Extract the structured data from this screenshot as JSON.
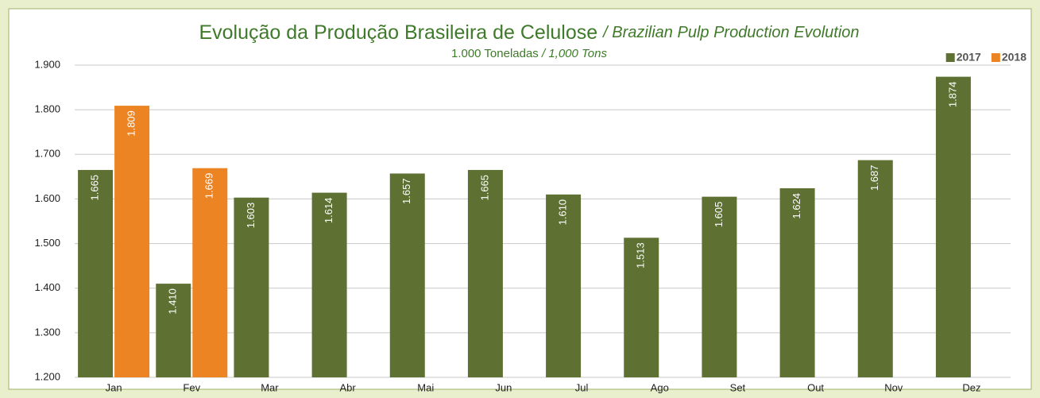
{
  "chart_data": {
    "type": "bar",
    "title": "Evolução da Produção Brasileira de Celulose",
    "title_translation": "/ Brazilian Pulp Production Evolution",
    "subtitle": "1.000 Toneladas",
    "subtitle_translation": "/ 1,000 Tons",
    "categories": [
      "Jan",
      "Fev",
      "Mar",
      "Abr",
      "Mai",
      "Jun",
      "Jul",
      "Ago",
      "Set",
      "Out",
      "Nov",
      "Dez"
    ],
    "series": [
      {
        "name": "2017",
        "color": "#5e7133",
        "values": [
          1665,
          1410,
          1603,
          1614,
          1657,
          1665,
          1610,
          1513,
          1605,
          1624,
          1687,
          1874
        ],
        "value_labels": [
          "1.665",
          "1.410",
          "1.603",
          "1.614",
          "1.657",
          "1.665",
          "1.610",
          "1.513",
          "1.605",
          "1.624",
          "1.687",
          "1.874"
        ]
      },
      {
        "name": "2018",
        "color": "#ec8423",
        "values": [
          1809,
          1669,
          null,
          null,
          null,
          null,
          null,
          null,
          null,
          null,
          null,
          null
        ],
        "value_labels": [
          "1.809",
          "1.669",
          null,
          null,
          null,
          null,
          null,
          null,
          null,
          null,
          null,
          null
        ]
      }
    ],
    "ylim": [
      1200,
      1900
    ],
    "yticks": [
      {
        "value": 1200,
        "label": "1.200"
      },
      {
        "value": 1300,
        "label": "1.300"
      },
      {
        "value": 1400,
        "label": "1.400"
      },
      {
        "value": 1500,
        "label": "1.500"
      },
      {
        "value": 1600,
        "label": "1.600"
      },
      {
        "value": 1700,
        "label": "1.700"
      },
      {
        "value": 1800,
        "label": "1.800"
      },
      {
        "value": 1900,
        "label": "1.900"
      }
    ],
    "grid": true,
    "legend": "top-right"
  }
}
